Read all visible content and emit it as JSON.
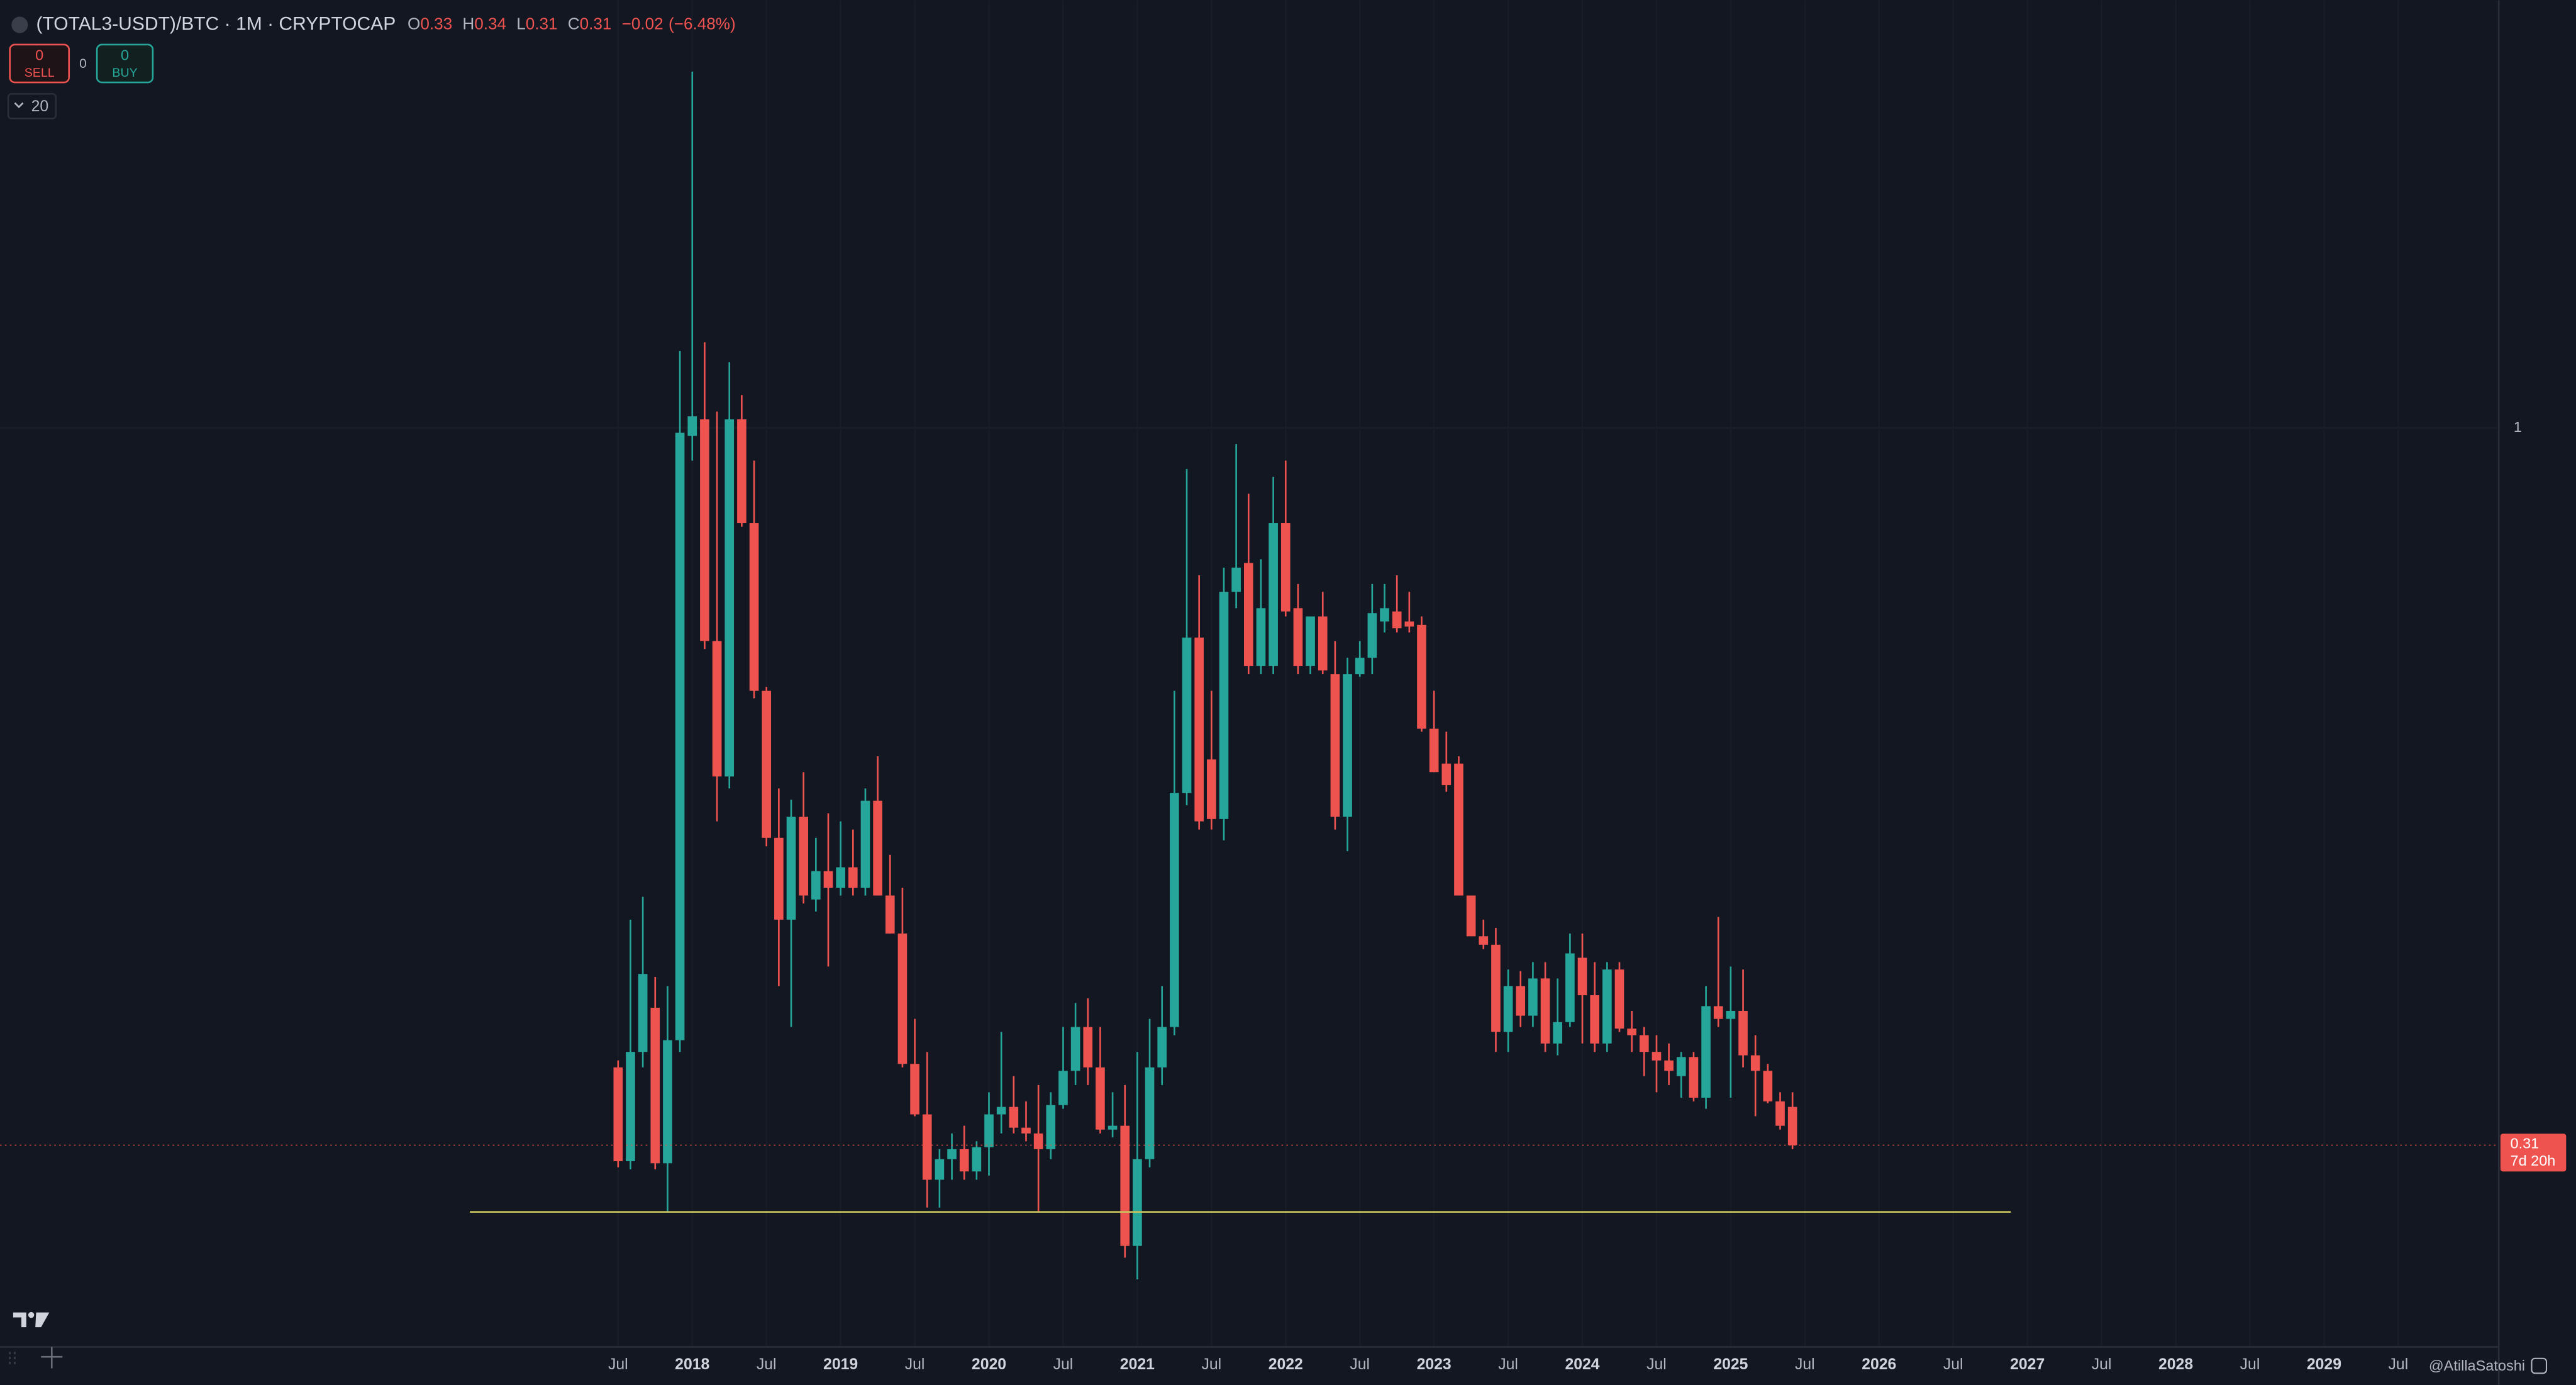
{
  "chart_data": {
    "type": "candlestick",
    "title": "(TOTAL3-USDT)/BTC · 1M · CRYPTOCAP",
    "legend_values": [
      {
        "label": "O",
        "value": 0.33
      },
      {
        "label": "H",
        "value": 0.34
      },
      {
        "label": "L",
        "value": 0.31
      },
      {
        "label": "C",
        "value": 0.31
      }
    ],
    "change": {
      "value": -0.02,
      "label": "−0.02"
    },
    "change_pct": {
      "value": -6.48,
      "label": "(−6.48%)"
    },
    "order_panel": {
      "sell_count": 0,
      "sell_label": "SELL",
      "spread": 0,
      "buy_count": 0,
      "buy_label": "BUY"
    },
    "indicator_count": 20,
    "watermark": "@AtillaSatoshi",
    "up_color": "#26a69a",
    "down_color": "#ef5350",
    "log_scale": true,
    "grid": true,
    "last_price": 0.31,
    "countdown": "7d 20h",
    "level_line": {
      "value": 0.278,
      "color": "#c9c35e"
    },
    "x": [
      "2017-07",
      "2017-08",
      "2017-09",
      "2017-10",
      "2017-11",
      "2017-12",
      "2018-01",
      "2018-02",
      "2018-03",
      "2018-04",
      "2018-05",
      "2018-06",
      "2018-07",
      "2018-08",
      "2018-09",
      "2018-10",
      "2018-11",
      "2018-12",
      "2019-01",
      "2019-02",
      "2019-03",
      "2019-04",
      "2019-05",
      "2019-06",
      "2019-07",
      "2019-08",
      "2019-09",
      "2019-10",
      "2019-11",
      "2019-12",
      "2020-01",
      "2020-02",
      "2020-03",
      "2020-04",
      "2020-05",
      "2020-06",
      "2020-07",
      "2020-08",
      "2020-09",
      "2020-10",
      "2020-11",
      "2020-12",
      "2021-01",
      "2021-02",
      "2021-03",
      "2021-04",
      "2021-05",
      "2021-06",
      "2021-07",
      "2021-08",
      "2021-09",
      "2021-10",
      "2021-11",
      "2021-12",
      "2022-01",
      "2022-02",
      "2022-03",
      "2022-04",
      "2022-05",
      "2022-06",
      "2022-07",
      "2022-08",
      "2022-09",
      "2022-10",
      "2022-11",
      "2022-12",
      "2023-01",
      "2023-02",
      "2023-03",
      "2023-04",
      "2023-05",
      "2023-06",
      "2023-07",
      "2023-08",
      "2023-09",
      "2023-10",
      "2023-11",
      "2023-12",
      "2024-01",
      "2024-02",
      "2024-03",
      "2024-04",
      "2024-05",
      "2024-06",
      "2024-07",
      "2024-08",
      "2024-09",
      "2024-10",
      "2024-11",
      "2024-12",
      "2025-01",
      "2025-02",
      "2025-03",
      "2025-04",
      "2025-05",
      "2025-06"
    ],
    "open": [
      0.352,
      0.302,
      0.361,
      0.388,
      0.301,
      0.368,
      0.987,
      1.014,
      0.706,
      0.566,
      1.014,
      0.856,
      0.651,
      0.512,
      0.448,
      0.53,
      0.463,
      0.485,
      0.472,
      0.488,
      0.472,
      0.544,
      0.466,
      0.438,
      0.354,
      0.326,
      0.293,
      0.303,
      0.308,
      0.297,
      0.309,
      0.326,
      0.33,
      0.319,
      0.316,
      0.308,
      0.331,
      0.35,
      0.376,
      0.352,
      0.318,
      0.32,
      0.263,
      0.303,
      0.352,
      0.376,
      0.551,
      0.71,
      0.582,
      0.528,
      0.765,
      0.802,
      0.678,
      0.678,
      0.856,
      0.745,
      0.678,
      0.735,
      0.669,
      0.53,
      0.669,
      0.687,
      0.729,
      0.741,
      0.729,
      0.725,
      0.612,
      0.578,
      0.578,
      0.466,
      0.436,
      0.43,
      0.373,
      0.402,
      0.383,
      0.407,
      0.366,
      0.379,
      0.421,
      0.396,
      0.366,
      0.413,
      0.375,
      0.371,
      0.361,
      0.356,
      0.347,
      0.358,
      0.335,
      0.389,
      0.381,
      0.386,
      0.359,
      0.35,
      0.333,
      0.33
    ],
    "high": [
      0.356,
      0.448,
      0.465,
      0.408,
      0.402,
      1.134,
      1.789,
      1.15,
      1.027,
      1.113,
      1.055,
      0.948,
      0.655,
      0.555,
      0.545,
      0.57,
      0.512,
      0.533,
      0.526,
      0.519,
      0.555,
      0.585,
      0.498,
      0.472,
      0.381,
      0.361,
      0.308,
      0.316,
      0.32,
      0.312,
      0.338,
      0.373,
      0.347,
      0.333,
      0.342,
      0.338,
      0.376,
      0.391,
      0.394,
      0.376,
      0.338,
      0.342,
      0.361,
      0.381,
      0.402,
      0.651,
      0.935,
      0.786,
      0.651,
      0.796,
      0.974,
      0.898,
      0.807,
      0.923,
      0.948,
      0.775,
      0.735,
      0.765,
      0.706,
      0.687,
      0.706,
      0.775,
      0.775,
      0.786,
      0.765,
      0.735,
      0.651,
      0.609,
      0.585,
      0.466,
      0.448,
      0.442,
      0.413,
      0.412,
      0.418,
      0.418,
      0.407,
      0.438,
      0.438,
      0.418,
      0.418,
      0.418,
      0.386,
      0.376,
      0.371,
      0.366,
      0.361,
      0.361,
      0.402,
      0.45,
      0.415,
      0.413,
      0.371,
      0.354,
      0.338,
      0.338
    ],
    "low": [
      0.299,
      0.298,
      0.352,
      0.298,
      0.278,
      0.361,
      0.948,
      0.697,
      0.526,
      0.555,
      0.851,
      0.643,
      0.505,
      0.402,
      0.376,
      0.46,
      0.454,
      0.415,
      0.466,
      0.466,
      0.466,
      0.466,
      0.438,
      0.352,
      0.325,
      0.28,
      0.28,
      0.293,
      0.293,
      0.293,
      0.295,
      0.316,
      0.316,
      0.312,
      0.278,
      0.303,
      0.329,
      0.342,
      0.342,
      0.316,
      0.314,
      0.258,
      0.249,
      0.299,
      0.342,
      0.371,
      0.54,
      0.519,
      0.519,
      0.51,
      0.745,
      0.669,
      0.669,
      0.669,
      0.735,
      0.669,
      0.669,
      0.669,
      0.519,
      0.501,
      0.666,
      0.669,
      0.716,
      0.716,
      0.716,
      0.609,
      0.57,
      0.552,
      0.466,
      0.436,
      0.427,
      0.361,
      0.361,
      0.376,
      0.376,
      0.361,
      0.359,
      0.376,
      0.366,
      0.361,
      0.361,
      0.373,
      0.361,
      0.347,
      0.338,
      0.342,
      0.335,
      0.333,
      0.329,
      0.376,
      0.335,
      0.352,
      0.325,
      0.332,
      0.318,
      0.308
    ],
    "close": [
      0.302,
      0.361,
      0.41,
      0.301,
      0.368,
      0.992,
      1.019,
      0.706,
      0.566,
      1.014,
      0.856,
      0.651,
      0.512,
      0.448,
      0.53,
      0.466,
      0.485,
      0.472,
      0.488,
      0.472,
      0.544,
      0.466,
      0.438,
      0.354,
      0.326,
      0.293,
      0.303,
      0.308,
      0.297,
      0.309,
      0.326,
      0.33,
      0.319,
      0.316,
      0.308,
      0.331,
      0.35,
      0.376,
      0.352,
      0.318,
      0.32,
      0.263,
      0.303,
      0.352,
      0.376,
      0.551,
      0.71,
      0.526,
      0.528,
      0.765,
      0.796,
      0.678,
      0.745,
      0.856,
      0.741,
      0.678,
      0.735,
      0.673,
      0.53,
      0.669,
      0.687,
      0.739,
      0.745,
      0.721,
      0.723,
      0.612,
      0.57,
      0.558,
      0.466,
      0.436,
      0.43,
      0.373,
      0.402,
      0.383,
      0.407,
      0.366,
      0.379,
      0.424,
      0.396,
      0.366,
      0.413,
      0.375,
      0.371,
      0.361,
      0.356,
      0.35,
      0.358,
      0.335,
      0.389,
      0.381,
      0.386,
      0.359,
      0.35,
      0.333,
      0.32,
      0.31
    ],
    "xlim": [
      "2013-05",
      "2030-03"
    ],
    "ylim": [
      0.223,
      2.01
    ],
    "yticks": [
      1
    ],
    "xticks": [
      {
        "value": "2017-07",
        "label": "Jul"
      },
      {
        "value": "2018-01",
        "label": "2018"
      },
      {
        "value": "2018-07",
        "label": "Jul"
      },
      {
        "value": "2019-01",
        "label": "2019"
      },
      {
        "value": "2019-07",
        "label": "Jul"
      },
      {
        "value": "2020-01",
        "label": "2020"
      },
      {
        "value": "2020-07",
        "label": "Jul"
      },
      {
        "value": "2021-01",
        "label": "2021"
      },
      {
        "value": "2021-07",
        "label": "Jul"
      },
      {
        "value": "2022-01",
        "label": "2022"
      },
      {
        "value": "2022-07",
        "label": "Jul"
      },
      {
        "value": "2023-01",
        "label": "2023"
      },
      {
        "value": "2023-07",
        "label": "Jul"
      },
      {
        "value": "2024-01",
        "label": "2024"
      },
      {
        "value": "2024-07",
        "label": "Jul"
      },
      {
        "value": "2025-01",
        "label": "2025"
      },
      {
        "value": "2025-07",
        "label": "Jul"
      },
      {
        "value": "2026-01",
        "label": "2026"
      },
      {
        "value": "2026-07",
        "label": "Jul"
      },
      {
        "value": "2027-01",
        "label": "2027"
      },
      {
        "value": "2027-07",
        "label": "Jul"
      },
      {
        "value": "2028-01",
        "label": "2028"
      },
      {
        "value": "2028-07",
        "label": "Jul"
      },
      {
        "value": "2029-01",
        "label": "2029"
      },
      {
        "value": "2029-07",
        "label": "Jul"
      }
    ]
  }
}
